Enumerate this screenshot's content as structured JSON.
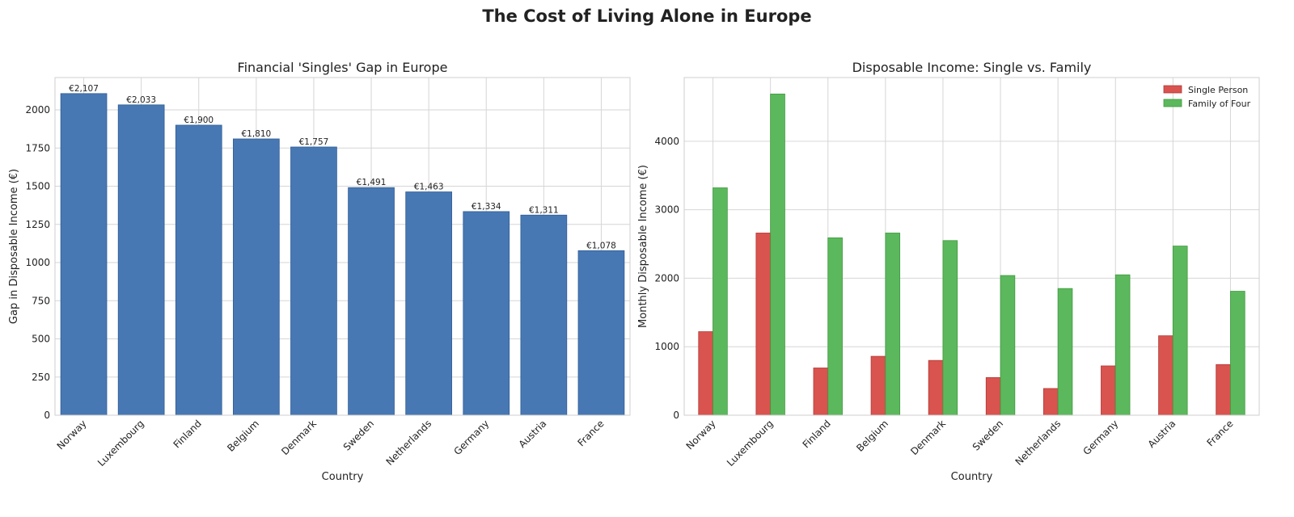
{
  "suptitle": "The Cost of Living Alone in Europe",
  "chart_data": [
    {
      "type": "bar",
      "title": "Financial 'Singles' Gap in Europe",
      "xlabel": "Country",
      "ylabel": "Gap in Disposable Income (€)",
      "categories": [
        "Norway",
        "Luxembourg",
        "Finland",
        "Belgium",
        "Denmark",
        "Sweden",
        "Netherlands",
        "Germany",
        "Austria",
        "France"
      ],
      "values": [
        2107,
        2033,
        1900,
        1810,
        1757,
        1491,
        1463,
        1334,
        1311,
        1078
      ],
      "data_labels": [
        "€2,107",
        "€2,033",
        "€1,900",
        "€1,810",
        "€1,757",
        "€1,491",
        "€1,463",
        "€1,334",
        "€1,311",
        "€1,078"
      ],
      "ylim": [
        0,
        2212
      ],
      "yticks": [
        0,
        250,
        500,
        750,
        1000,
        1250,
        1500,
        1750,
        2000
      ],
      "color": "#4878b4",
      "grid": true
    },
    {
      "type": "bar",
      "title": "Disposable Income: Single vs. Family",
      "xlabel": "Country",
      "ylabel": "Monthly Disposable Income (€)",
      "categories": [
        "Norway",
        "Luxembourg",
        "Finland",
        "Belgium",
        "Denmark",
        "Sweden",
        "Netherlands",
        "Germany",
        "Austria",
        "France"
      ],
      "series": [
        {
          "name": "Single Person",
          "color": "#d9534f",
          "values": [
            1220,
            2660,
            690,
            860,
            800,
            550,
            390,
            720,
            1160,
            740
          ]
        },
        {
          "name": "Family of Four",
          "color": "#5cb85c",
          "values": [
            3320,
            4690,
            2590,
            2660,
            2550,
            2040,
            1850,
            2050,
            2470,
            1810
          ]
        }
      ],
      "ylim": [
        0,
        4930
      ],
      "yticks": [
        0,
        1000,
        2000,
        3000,
        4000
      ],
      "legend": "top-right",
      "grid": true
    }
  ]
}
